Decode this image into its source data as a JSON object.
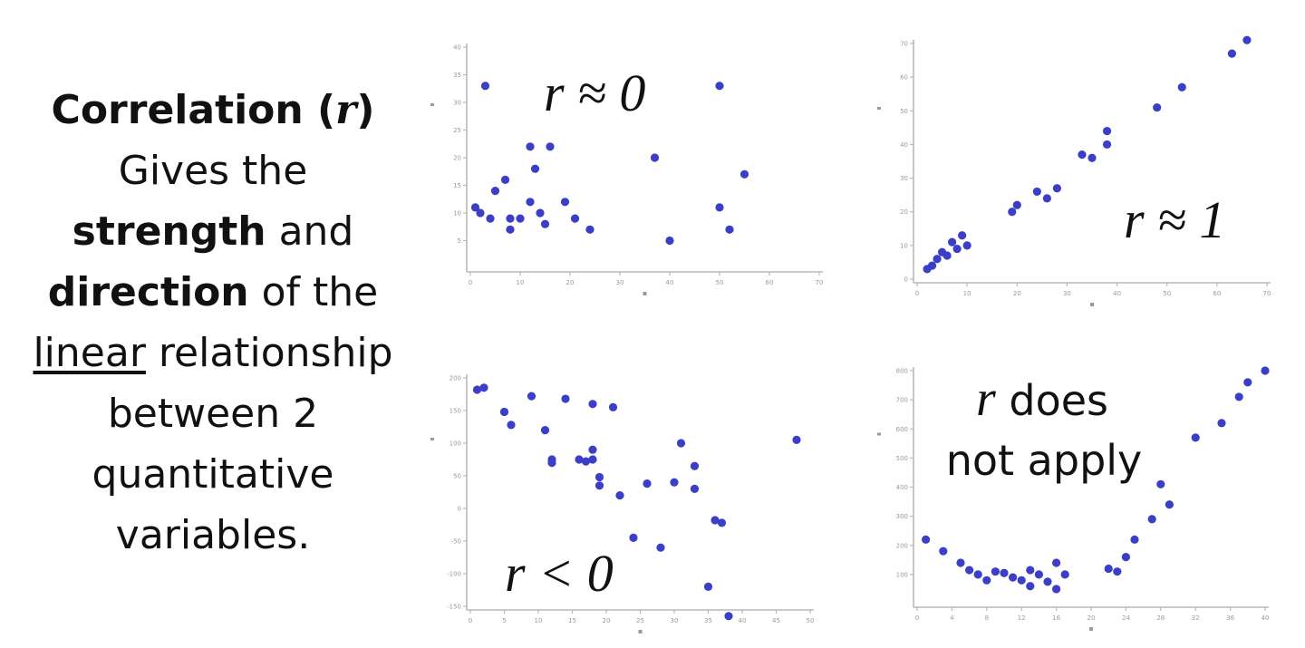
{
  "text": {
    "title_bold": "Correlation (",
    "title_r": "r",
    "title_close": ")",
    "line2": "Gives the",
    "strength": "strength",
    "and": " and",
    "direction": "direction",
    "of_the": " of the",
    "linear": "linear",
    "relationship": " relationship",
    "between": "between 2",
    "quantitative": "quantitative",
    "variables": "variables."
  },
  "colors": {
    "points": "#3b3fc7",
    "axis": "#b9b9b9"
  },
  "chart_data": [
    {
      "type": "scatter",
      "annotation": "r ≈ 0",
      "xlim": [
        0,
        70
      ],
      "ylim": [
        0,
        40
      ],
      "xticks": [
        0,
        10,
        20,
        30,
        40,
        50,
        60,
        70
      ],
      "yticks": [
        5,
        10,
        15,
        20,
        25,
        30,
        35,
        40
      ],
      "points": [
        [
          1,
          11
        ],
        [
          2,
          10
        ],
        [
          3,
          33
        ],
        [
          4,
          9
        ],
        [
          5,
          14
        ],
        [
          7,
          16
        ],
        [
          8,
          9
        ],
        [
          8,
          7
        ],
        [
          10,
          9
        ],
        [
          12,
          22
        ],
        [
          12,
          12
        ],
        [
          13,
          18
        ],
        [
          14,
          10
        ],
        [
          15,
          8
        ],
        [
          16,
          22
        ],
        [
          19,
          12
        ],
        [
          21,
          9
        ],
        [
          24,
          7
        ],
        [
          37,
          20
        ],
        [
          40,
          5
        ],
        [
          50,
          33
        ],
        [
          50,
          11
        ],
        [
          52,
          7
        ],
        [
          55,
          17
        ]
      ]
    },
    {
      "type": "scatter",
      "annotation": "r ≈ 1",
      "xlim": [
        0,
        70
      ],
      "ylim": [
        0,
        70
      ],
      "xticks": [
        0,
        10,
        20,
        30,
        40,
        50,
        60,
        70
      ],
      "yticks": [
        0,
        10,
        20,
        30,
        40,
        50,
        60,
        70
      ],
      "points": [
        [
          2,
          3
        ],
        [
          3,
          4
        ],
        [
          4,
          6
        ],
        [
          5,
          8
        ],
        [
          6,
          7
        ],
        [
          7,
          11
        ],
        [
          8,
          9
        ],
        [
          9,
          13
        ],
        [
          10,
          10
        ],
        [
          19,
          20
        ],
        [
          20,
          22
        ],
        [
          24,
          26
        ],
        [
          26,
          24
        ],
        [
          28,
          27
        ],
        [
          33,
          37
        ],
        [
          35,
          36
        ],
        [
          38,
          40
        ],
        [
          38,
          44
        ],
        [
          48,
          51
        ],
        [
          53,
          57
        ],
        [
          63,
          67
        ],
        [
          66,
          71
        ]
      ]
    },
    {
      "type": "scatter",
      "annotation": "r < 0",
      "xlim": [
        0,
        50
      ],
      "ylim": [
        -150,
        200
      ],
      "xticks": [
        0,
        5,
        10,
        15,
        20,
        25,
        30,
        35,
        40,
        45,
        50
      ],
      "yticks": [
        -150,
        -100,
        -50,
        0,
        50,
        100,
        150,
        200
      ],
      "points": [
        [
          1,
          182
        ],
        [
          2,
          185
        ],
        [
          5,
          148
        ],
        [
          6,
          128
        ],
        [
          9,
          172
        ],
        [
          11,
          120
        ],
        [
          12,
          75
        ],
        [
          12,
          70
        ],
        [
          14,
          168
        ],
        [
          16,
          75
        ],
        [
          17,
          72
        ],
        [
          18,
          90
        ],
        [
          18,
          75
        ],
        [
          18,
          160
        ],
        [
          19,
          48
        ],
        [
          19,
          35
        ],
        [
          21,
          155
        ],
        [
          22,
          20
        ],
        [
          24,
          -45
        ],
        [
          26,
          38
        ],
        [
          28,
          -60
        ],
        [
          30,
          40
        ],
        [
          31,
          100
        ],
        [
          33,
          65
        ],
        [
          33,
          30
        ],
        [
          35,
          -120
        ],
        [
          36,
          -18
        ],
        [
          37,
          -22
        ],
        [
          38,
          -165
        ],
        [
          48,
          105
        ]
      ]
    },
    {
      "type": "scatter",
      "annotation_italic": "r",
      "annotation_rest": " does",
      "annotation_line2": "not apply",
      "xlim": [
        0,
        40
      ],
      "ylim": [
        0,
        800
      ],
      "xticks": [
        0,
        4,
        8,
        12,
        16,
        20,
        24,
        28,
        32,
        36,
        40
      ],
      "yticks": [
        100,
        200,
        300,
        400,
        500,
        600,
        700,
        800
      ],
      "points": [
        [
          1,
          220
        ],
        [
          3,
          180
        ],
        [
          5,
          140
        ],
        [
          6,
          115
        ],
        [
          7,
          100
        ],
        [
          8,
          80
        ],
        [
          9,
          110
        ],
        [
          10,
          105
        ],
        [
          11,
          90
        ],
        [
          12,
          80
        ],
        [
          13,
          115
        ],
        [
          13,
          60
        ],
        [
          14,
          100
        ],
        [
          15,
          75
        ],
        [
          16,
          140
        ],
        [
          16,
          50
        ],
        [
          17,
          100
        ],
        [
          22,
          120
        ],
        [
          23,
          110
        ],
        [
          24,
          160
        ],
        [
          25,
          220
        ],
        [
          27,
          290
        ],
        [
          28,
          410
        ],
        [
          29,
          340
        ],
        [
          32,
          570
        ],
        [
          35,
          620
        ],
        [
          37,
          710
        ],
        [
          38,
          760
        ],
        [
          40,
          800
        ]
      ]
    }
  ]
}
